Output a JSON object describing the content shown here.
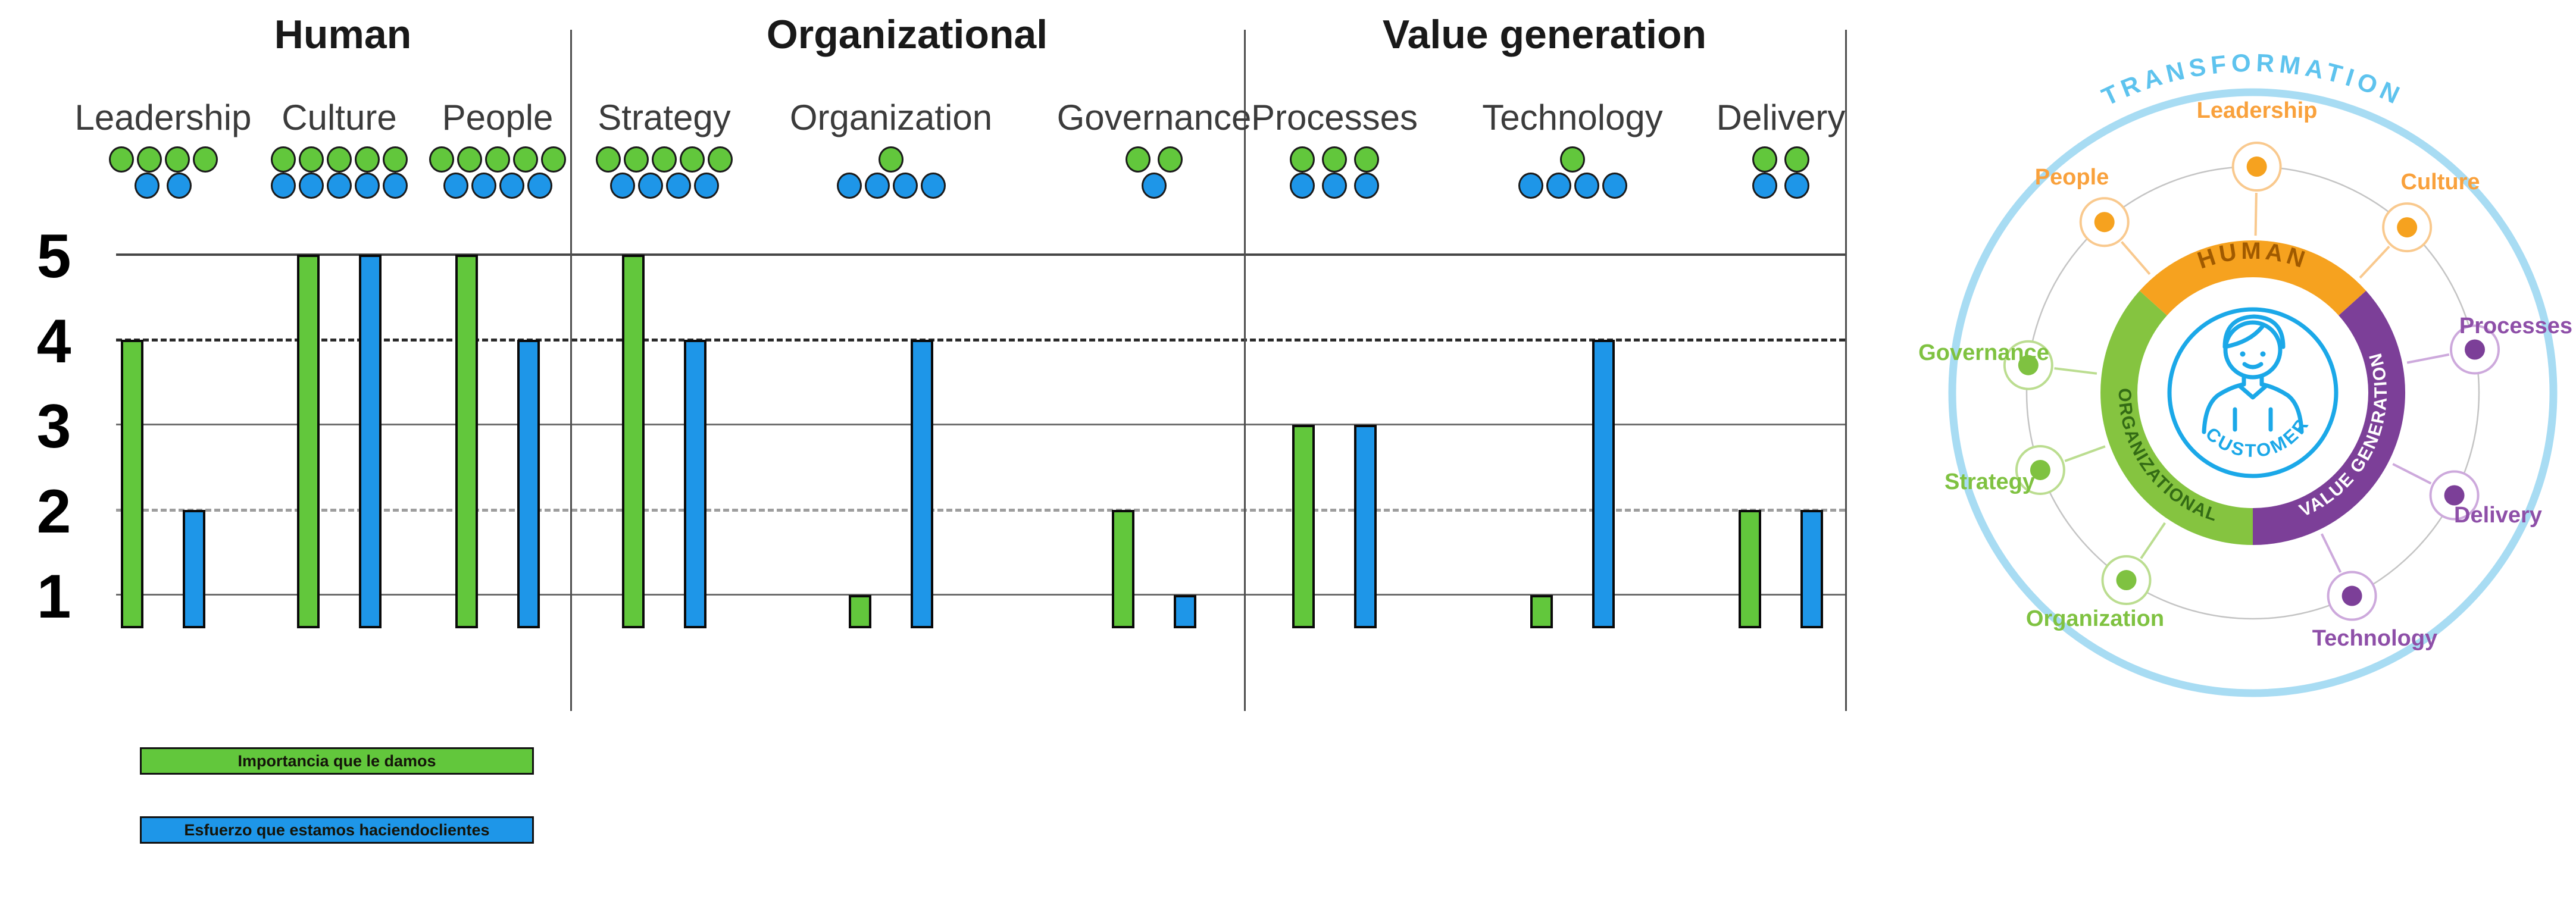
{
  "chart_data": {
    "type": "bar",
    "title_groups": [
      "Human",
      "Organizational",
      "Value generation"
    ],
    "categories": [
      "Leadership",
      "Culture",
      "People",
      "Strategy",
      "Organization",
      "Governance",
      "Processes",
      "Technology",
      "Delivery"
    ],
    "series": [
      {
        "name": "Importancia que le damos",
        "color": "#62C73C",
        "values": [
          4,
          5,
          5,
          5,
          1,
          2,
          3,
          1,
          2
        ]
      },
      {
        "name": "Esfuerzo que estamos haciendoclientes",
        "color": "#1E96E8",
        "values": [
          2,
          5,
          4,
          4,
          4,
          1,
          3,
          4,
          2
        ]
      }
    ],
    "ylim": [
      0,
      5
    ],
    "y_ticks": [
      5,
      4,
      3,
      2,
      1
    ],
    "gridlines": {
      "solid_at": [
        5,
        3,
        1
      ],
      "dashed_at": [
        4,
        2
      ]
    },
    "legend_position": "bottom-left",
    "annotation": "Dot icons above each category repeat the bar values (green dots = importance count, blue dots = effort count)"
  },
  "chart": {
    "y_ticks": [
      "5",
      "4",
      "3",
      "2",
      "1"
    ],
    "colors": {
      "importance": "#62C73C",
      "effort": "#1E96E8"
    },
    "groups": [
      {
        "title": "Human",
        "categories": [
          {
            "name": "Leadership",
            "importance": 4,
            "effort": 2
          },
          {
            "name": "Culture",
            "importance": 5,
            "effort": 5
          },
          {
            "name": "People",
            "importance": 5,
            "effort": 4
          }
        ]
      },
      {
        "title": "Organizational",
        "categories": [
          {
            "name": "Strategy",
            "importance": 5,
            "effort": 4
          },
          {
            "name": "Organization",
            "importance": 1,
            "effort": 4
          },
          {
            "name": "Governance",
            "importance": 2,
            "effort": 1
          }
        ]
      },
      {
        "title": "Value generation",
        "categories": [
          {
            "name": "Processes",
            "importance": 3,
            "effort": 3
          },
          {
            "name": "Technology",
            "importance": 1,
            "effort": 4
          },
          {
            "name": "Delivery",
            "importance": 2,
            "effort": 2
          }
        ]
      }
    ]
  },
  "legend": {
    "items": [
      {
        "label": "Importancia que le damos",
        "color": "#62C73C"
      },
      {
        "label": "Esfuerzo que estamos haciendoclientes",
        "color": "#1E96E8"
      }
    ]
  },
  "wheel": {
    "outer_label": "TRANSFORMATION",
    "center_label": "CUSTOMER",
    "segments": [
      {
        "label": "HUMAN",
        "color": "#F6A21F",
        "text_color": "#A05A00"
      },
      {
        "label": "ORGANIZATIONAL",
        "color": "#85C440",
        "text_color": "#336B15"
      },
      {
        "label": "VALUE GENERATION",
        "color": "#7C3F98",
        "text_color": "#FFFFFF"
      }
    ],
    "nodes": [
      {
        "label": "Leadership",
        "group": "human"
      },
      {
        "label": "Culture",
        "group": "human"
      },
      {
        "label": "Processes",
        "group": "value"
      },
      {
        "label": "Delivery",
        "group": "value"
      },
      {
        "label": "Technology",
        "group": "value"
      },
      {
        "label": "Organization",
        "group": "organizational"
      },
      {
        "label": "Strategy",
        "group": "organizational"
      },
      {
        "label": "Governance",
        "group": "organizational"
      },
      {
        "label": "People",
        "group": "human"
      }
    ],
    "colors": {
      "outer_ring": "#A8DCF3",
      "outer_label": "#5EC3EE",
      "customer": "#1BA8E8"
    }
  }
}
